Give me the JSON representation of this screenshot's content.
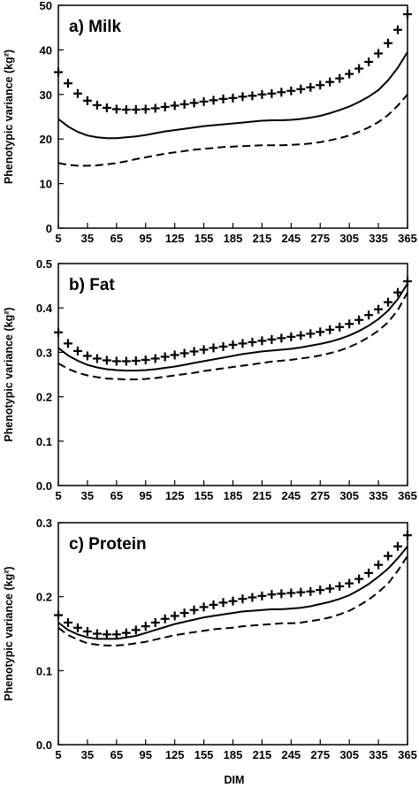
{
  "chart_data": {
    "type": "line",
    "xlabel": "DIM",
    "ylabel": "Phenotypic variance (kg²)",
    "x": [
      5,
      15,
      25,
      35,
      45,
      55,
      65,
      75,
      85,
      95,
      105,
      115,
      125,
      135,
      145,
      155,
      165,
      175,
      185,
      195,
      205,
      215,
      225,
      235,
      245,
      255,
      265,
      275,
      285,
      295,
      305,
      315,
      325,
      335,
      345,
      355,
      365
    ],
    "xticks": [
      5,
      35,
      65,
      95,
      125,
      155,
      185,
      215,
      245,
      275,
      305,
      335,
      365
    ],
    "panels": [
      {
        "label": "a) Milk",
        "ylim": [
          0,
          50
        ],
        "yticks": [
          0,
          10,
          20,
          30,
          40,
          50
        ],
        "series": [
          {
            "style": "plus",
            "values": [
              35,
              32.5,
              30.2,
              28.6,
              27.6,
              27,
              26.7,
              26.6,
              26.6,
              26.7,
              26.9,
              27.2,
              27.5,
              27.8,
              28.1,
              28.4,
              28.7,
              29,
              29.2,
              29.5,
              29.7,
              30,
              30.2,
              30.5,
              30.8,
              31.2,
              31.6,
              32.1,
              32.8,
              33.6,
              34.6,
              35.8,
              37.3,
              39.2,
              41.5,
              44.5,
              48
            ]
          },
          {
            "style": "solid",
            "values": [
              24.5,
              22.8,
              21.6,
              20.8,
              20.4,
              20.2,
              20.2,
              20.4,
              20.6,
              20.9,
              21.3,
              21.7,
              22,
              22.3,
              22.6,
              22.9,
              23.1,
              23.3,
              23.5,
              23.7,
              23.9,
              24.1,
              24.2,
              24.2,
              24.3,
              24.5,
              24.8,
              25.2,
              25.8,
              26.5,
              27.3,
              28.3,
              29.5,
              31,
              33.2,
              36,
              39.5
            ]
          },
          {
            "style": "dashed",
            "values": [
              14.6,
              14.2,
              14,
              14,
              14.1,
              14.3,
              14.6,
              15,
              15.5,
              15.9,
              16.3,
              16.7,
              17,
              17.3,
              17.6,
              17.8,
              18,
              18.2,
              18.3,
              18.4,
              18.5,
              18.6,
              18.6,
              18.6,
              18.7,
              18.8,
              19,
              19.3,
              19.7,
              20.2,
              20.8,
              21.6,
              22.6,
              23.8,
              25.4,
              27.5,
              30
            ]
          }
        ]
      },
      {
        "label": "b) Fat",
        "ylim": [
          0,
          0.5
        ],
        "yticks": [
          0.0,
          0.1,
          0.2,
          0.3,
          0.4,
          0.5
        ],
        "ytick_labels": [
          "0.0",
          "0.1",
          "0.2",
          "0.3",
          "0.4",
          "0.5"
        ],
        "series": [
          {
            "style": "plus",
            "values": [
              0.345,
              0.32,
              0.303,
              0.292,
              0.286,
              0.282,
              0.28,
              0.28,
              0.281,
              0.283,
              0.286,
              0.29,
              0.294,
              0.298,
              0.302,
              0.306,
              0.31,
              0.313,
              0.317,
              0.32,
              0.323,
              0.326,
              0.329,
              0.332,
              0.335,
              0.338,
              0.342,
              0.346,
              0.351,
              0.357,
              0.364,
              0.373,
              0.384,
              0.397,
              0.413,
              0.435,
              0.46
            ]
          },
          {
            "style": "solid",
            "values": [
              0.31,
              0.293,
              0.281,
              0.272,
              0.266,
              0.262,
              0.26,
              0.259,
              0.259,
              0.26,
              0.262,
              0.265,
              0.268,
              0.272,
              0.276,
              0.28,
              0.284,
              0.288,
              0.292,
              0.296,
              0.299,
              0.302,
              0.304,
              0.306,
              0.308,
              0.311,
              0.315,
              0.319,
              0.324,
              0.33,
              0.338,
              0.348,
              0.36,
              0.375,
              0.394,
              0.42,
              0.455
            ]
          },
          {
            "style": "dashed",
            "values": [
              0.275,
              0.263,
              0.254,
              0.248,
              0.244,
              0.241,
              0.24,
              0.239,
              0.239,
              0.24,
              0.242,
              0.245,
              0.248,
              0.251,
              0.254,
              0.258,
              0.261,
              0.264,
              0.267,
              0.27,
              0.273,
              0.276,
              0.279,
              0.281,
              0.283,
              0.286,
              0.289,
              0.293,
              0.298,
              0.304,
              0.312,
              0.322,
              0.334,
              0.349,
              0.368,
              0.395,
              0.435
            ]
          }
        ]
      },
      {
        "label": "c) Protein",
        "ylim": [
          0,
          0.3
        ],
        "yticks": [
          0.0,
          0.1,
          0.2,
          0.3
        ],
        "ytick_labels": [
          "0.0",
          "0.1",
          "0.2",
          "0.3"
        ],
        "series": [
          {
            "style": "plus",
            "values": [
              0.175,
              0.165,
              0.158,
              0.153,
              0.15,
              0.149,
              0.149,
              0.151,
              0.155,
              0.16,
              0.165,
              0.17,
              0.174,
              0.178,
              0.182,
              0.186,
              0.189,
              0.192,
              0.194,
              0.197,
              0.199,
              0.201,
              0.203,
              0.204,
              0.205,
              0.206,
              0.207,
              0.209,
              0.211,
              0.214,
              0.218,
              0.224,
              0.232,
              0.243,
              0.255,
              0.268,
              0.283
            ]
          },
          {
            "style": "solid",
            "values": [
              0.165,
              0.155,
              0.149,
              0.145,
              0.143,
              0.143,
              0.143,
              0.145,
              0.147,
              0.151,
              0.155,
              0.159,
              0.163,
              0.166,
              0.169,
              0.172,
              0.174,
              0.176,
              0.178,
              0.18,
              0.181,
              0.182,
              0.183,
              0.183,
              0.184,
              0.185,
              0.187,
              0.19,
              0.193,
              0.197,
              0.202,
              0.209,
              0.217,
              0.227,
              0.238,
              0.252,
              0.268
            ]
          },
          {
            "style": "dashed",
            "values": [
              0.158,
              0.148,
              0.142,
              0.137,
              0.135,
              0.134,
              0.134,
              0.135,
              0.137,
              0.139,
              0.142,
              0.145,
              0.148,
              0.15,
              0.152,
              0.154,
              0.156,
              0.157,
              0.158,
              0.16,
              0.161,
              0.162,
              0.163,
              0.164,
              0.164,
              0.165,
              0.167,
              0.169,
              0.172,
              0.176,
              0.181,
              0.188,
              0.196,
              0.206,
              0.218,
              0.235,
              0.255
            ]
          }
        ]
      }
    ]
  }
}
